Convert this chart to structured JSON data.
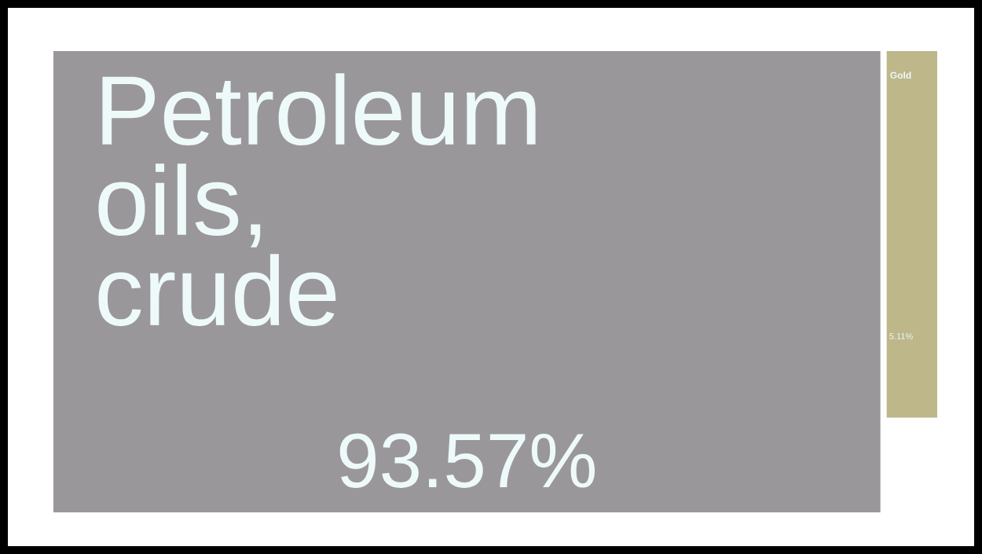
{
  "chart_data": {
    "type": "other",
    "categories": [
      "Petroleum oils, crude",
      "Gold"
    ],
    "values": [
      93.57,
      5.11
    ],
    "colors": [
      "#9a979b",
      "#bdb78a"
    ],
    "value_labels": [
      "93.57%",
      "5.11%"
    ]
  }
}
